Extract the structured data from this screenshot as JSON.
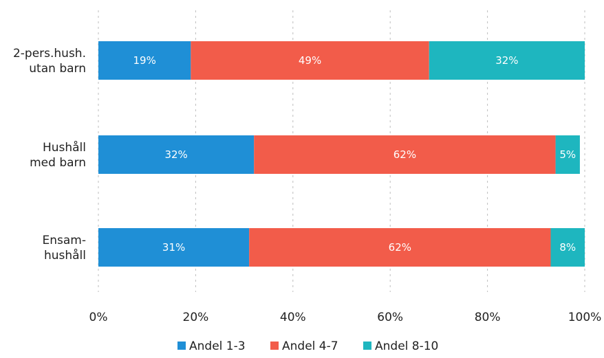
{
  "chart_data": {
    "type": "bar",
    "orientation": "horizontal",
    "stacked": true,
    "categories": [
      [
        "2-pers.hush.",
        "utan barn"
      ],
      [
        "Hushåll",
        "med barn"
      ],
      [
        "Ensam-",
        "hushåll"
      ]
    ],
    "series": [
      {
        "name": "Andel 1-3",
        "color": "#1f8fd6",
        "values": [
          19,
          32,
          31
        ],
        "labels": [
          "19%",
          "32%",
          "31%"
        ]
      },
      {
        "name": "Andel 4-7",
        "color": "#f25c4a",
        "values": [
          49,
          62,
          62
        ],
        "labels": [
          "49%",
          "62%",
          "62%"
        ]
      },
      {
        "name": "Andel 8-10",
        "color": "#1eb6bf",
        "values": [
          32,
          5,
          8
        ],
        "labels": [
          "32%",
          "5%",
          "8%"
        ]
      }
    ],
    "xticks": [
      "0%",
      "20%",
      "40%",
      "60%",
      "80%",
      "100%"
    ],
    "xlim": [
      0,
      100
    ],
    "grid": true,
    "legend_position": "bottom"
  }
}
